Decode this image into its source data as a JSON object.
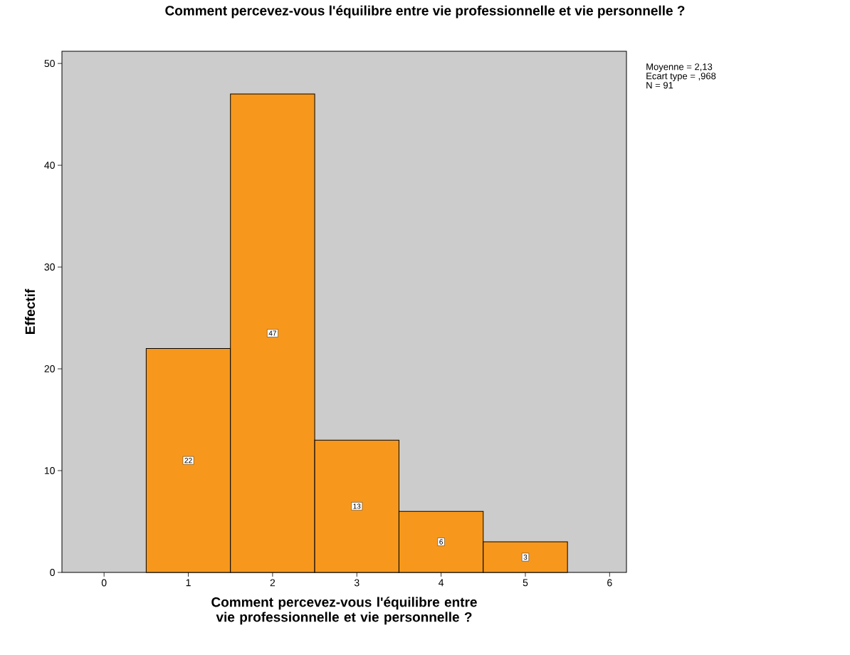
{
  "chart_data": {
    "type": "histogram",
    "title": "Comment percevez-vous l'équilibre entre vie professionnelle et vie personnelle ?",
    "xlabel": "Comment percevez-vous l'équilibre entre vie professionnelle et vie personnelle ?",
    "ylabel": "Effectif",
    "bins": [
      0.5,
      1.5,
      2.5,
      3.5,
      4.5,
      5.5
    ],
    "values": [
      22,
      47,
      13,
      6,
      3
    ],
    "color": "#f7981d",
    "data_labels": true,
    "xlim": [
      -0.5,
      6.2
    ],
    "ylim": [
      0,
      51.2
    ],
    "xticks": [
      0,
      1,
      2,
      3,
      4,
      5,
      6
    ],
    "yticks": [
      0,
      10,
      20,
      30,
      40,
      50
    ],
    "annotations": [
      "Moyenne = 2,13",
      "Ecart type = ,968",
      "N = 91"
    ]
  }
}
